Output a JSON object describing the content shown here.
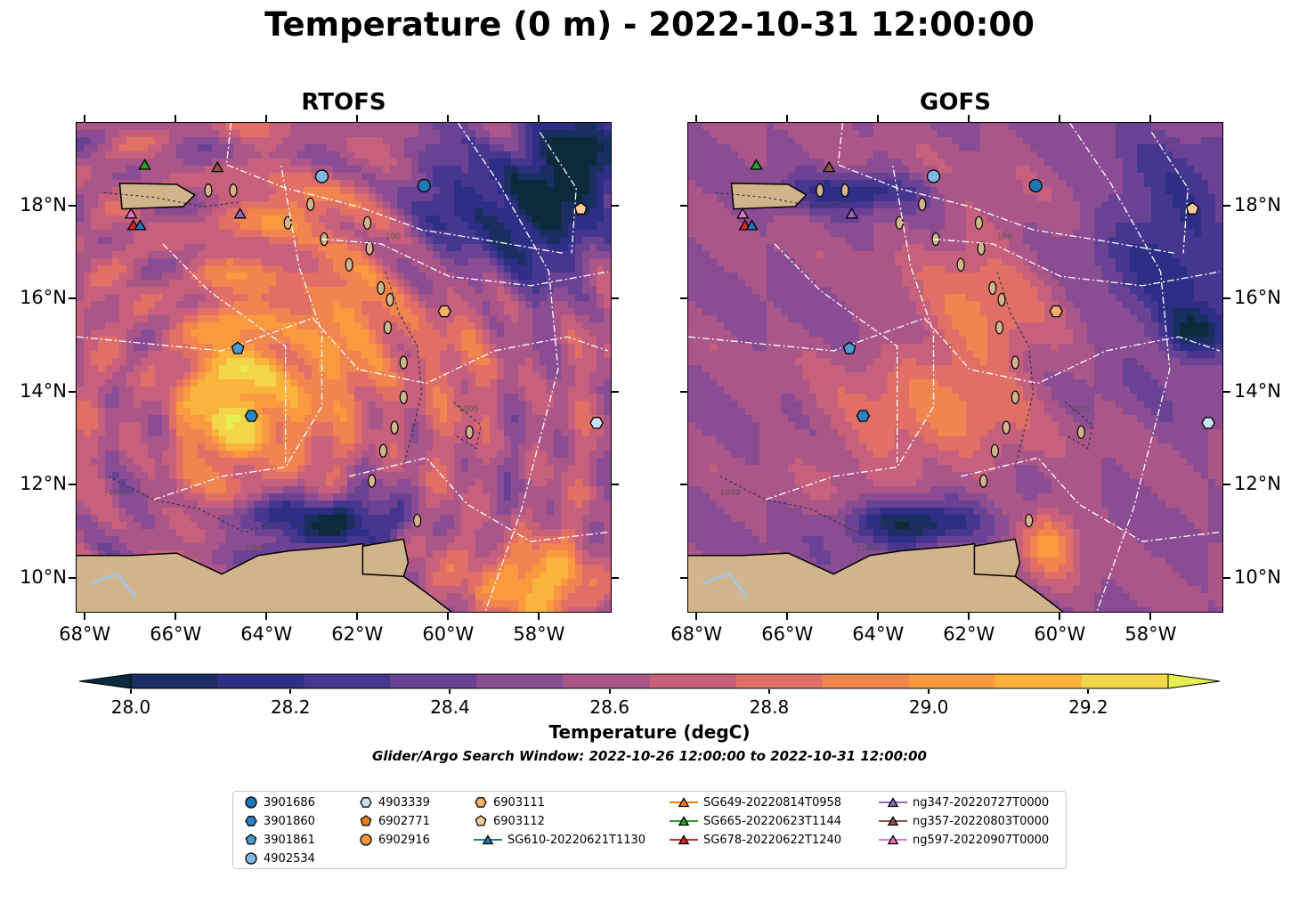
{
  "title": "Temperature (0 m) - 2022-10-31 12:00:00",
  "panels": [
    {
      "title": "RTOFS",
      "lat_labels_side": "left"
    },
    {
      "title": "GOFS",
      "lat_labels_side": "right"
    }
  ],
  "x_ticks": [
    "68°W",
    "66°W",
    "64°W",
    "62°W",
    "60°W",
    "58°W"
  ],
  "y_ticks": [
    "18°N",
    "16°N",
    "14°N",
    "12°N",
    "10°N"
  ],
  "contour_labels": [
    "100",
    "1000"
  ],
  "colorbar": {
    "label": "Temperature (degC)",
    "ticks": [
      "28.0",
      "28.2",
      "28.4",
      "28.6",
      "28.8",
      "29.0",
      "29.2"
    ],
    "colors": [
      "#0b2a3c",
      "#1b2e62",
      "#2d2f86",
      "#47368f",
      "#6a4294",
      "#8a4c92",
      "#ab5689",
      "#c7607c",
      "#e06f66",
      "#f08550",
      "#f99a3e",
      "#fab43c",
      "#f2d548",
      "#e6ef52"
    ]
  },
  "search_window": "Glider/Argo Search Window: 2022-10-26 12:00:00 to 2022-10-31 12:00:00",
  "colors": {
    "land": "#d2b48c",
    "water_in_land": "#a7c4e0",
    "eez_line": "#ffffff"
  },
  "legend": [
    {
      "label": "3901686",
      "marker": "circle",
      "color": "#1f77b4"
    },
    {
      "label": "3901860",
      "marker": "hexagon",
      "color": "#2a86c2"
    },
    {
      "label": "3901861",
      "marker": "pentagon",
      "color": "#4a9bd2"
    },
    {
      "label": "4902534",
      "marker": "circle",
      "color": "#80b8e3"
    },
    {
      "label": "4903339",
      "marker": "hexagon",
      "color": "#c8e2f5"
    },
    {
      "label": "6902771",
      "marker": "pentagon",
      "color": "#ee7d1e"
    },
    {
      "label": "6902916",
      "marker": "circle",
      "color": "#f4973a"
    },
    {
      "label": "6903111",
      "marker": "hexagon",
      "color": "#f8b06a"
    },
    {
      "label": "6903112",
      "marker": "pentagon",
      "color": "#fbcc9a"
    },
    {
      "label": "SG610-20220621T1130",
      "marker": "triangle",
      "color": "#1f77b4",
      "line": "#1f77b4"
    },
    {
      "label": "SG649-20220814T0958",
      "marker": "triangle",
      "color": "#ff7f0e",
      "line": "#ff7f0e"
    },
    {
      "label": "SG665-20220623T1144",
      "marker": "triangle",
      "color": "#2ca02c",
      "line": "#2ca02c"
    },
    {
      "label": "SG678-20220622T1240",
      "marker": "triangle",
      "color": "#d62728",
      "line": "#d62728"
    },
    {
      "label": "ng347-20220727T0000",
      "marker": "triangle",
      "color": "#9467bd",
      "line": "#9467bd"
    },
    {
      "label": "ng357-20220803T0000",
      "marker": "triangle",
      "color": "#8c564b",
      "line": "#8c564b"
    },
    {
      "label": "ng597-20220907T0000",
      "marker": "triangle",
      "color": "#e377c2",
      "line": "#e377c2"
    }
  ],
  "chart_data": {
    "type": "heatmap",
    "variable": "Temperature",
    "depth": "0 m",
    "time": "2022-10-31 12:00:00",
    "units": "degC",
    "lon_range": [
      -68.2,
      -56.4
    ],
    "lat_range": [
      9.25,
      19.8
    ],
    "color_range": [
      28.0,
      29.3
    ],
    "color_step": 0.1,
    "models": [
      "RTOFS",
      "GOFS"
    ],
    "observations": [
      {
        "id": "4902534",
        "lon": -62.8,
        "lat": 18.65
      },
      {
        "id": "3901686",
        "lon": -60.55,
        "lat": 18.45
      },
      {
        "id": "6903112",
        "lon": -57.1,
        "lat": 17.95
      },
      {
        "id": "6903111",
        "lon": -60.1,
        "lat": 15.75
      },
      {
        "id": "3901861",
        "lon": -64.65,
        "lat": 14.95
      },
      {
        "id": "3901860",
        "lon": -64.35,
        "lat": 13.5
      },
      {
        "id": "4903339",
        "lon": -56.75,
        "lat": 13.35
      },
      {
        "id": "SG665-20220623T1144",
        "lon": -66.7,
        "lat": 18.9
      },
      {
        "id": "ng357-20220803T0000",
        "lon": -65.1,
        "lat": 18.85
      },
      {
        "id": "ng347-20220727T0000",
        "lon": -64.6,
        "lat": 17.85
      },
      {
        "id": "ng597-20220907T0000",
        "lon": -67.0,
        "lat": 17.85
      },
      {
        "id": "SG678-20220622T1240",
        "lon": -66.95,
        "lat": 17.6
      },
      {
        "id": "SG610-20220621T1130",
        "lon": -66.8,
        "lat": 17.6
      }
    ]
  }
}
